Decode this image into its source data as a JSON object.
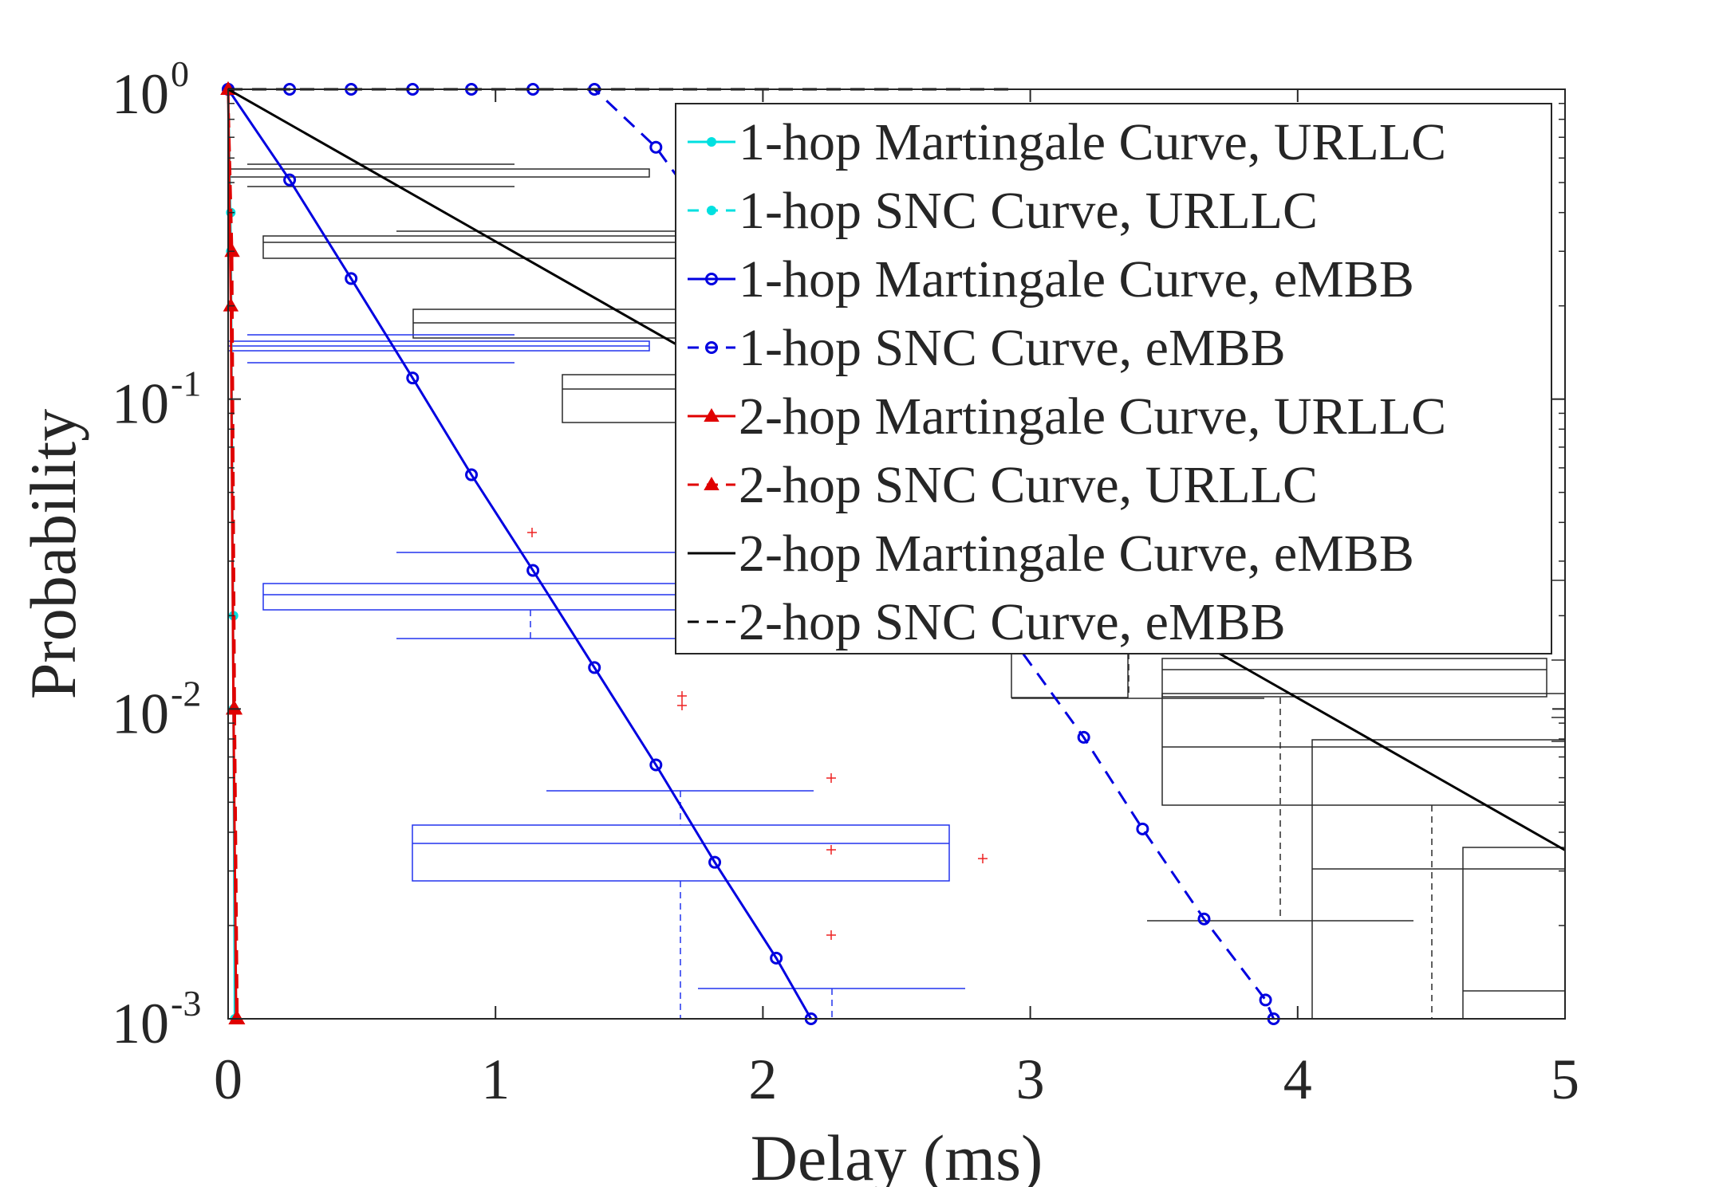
{
  "chart_data": {
    "type": "line",
    "xlabel": "Delay (ms)",
    "ylabel": "Probability",
    "xlim": [
      0,
      5
    ],
    "ylim": [
      0.001,
      1
    ],
    "yscale": "log",
    "grid": false,
    "legend_position": "top-right",
    "x_ticks": [
      {
        "value": 0,
        "label": "0"
      },
      {
        "value": 1,
        "label": "1"
      },
      {
        "value": 2,
        "label": "2"
      },
      {
        "value": 3,
        "label": "3"
      },
      {
        "value": 4,
        "label": "4"
      },
      {
        "value": 5,
        "label": "5"
      }
    ],
    "y_ticks": [
      {
        "value": 1,
        "base": "10",
        "exp": "0"
      },
      {
        "value": 0.1,
        "base": "10",
        "exp": "-1"
      },
      {
        "value": 0.01,
        "base": "10",
        "exp": "-2"
      },
      {
        "value": 0.001,
        "base": "10",
        "exp": "-3"
      }
    ],
    "series": [
      {
        "name": "1-hop Martingale Curve, URLLC",
        "color": "#00e0e0",
        "line": "solid",
        "marker": "dot",
        "x": [
          0,
          0.01,
          0.02,
          0.025
        ],
        "y": [
          1,
          0.3,
          0.01,
          0.001
        ]
      },
      {
        "name": "1-hop SNC Curve, URLLC",
        "color": "#00e0e0",
        "line": "dashed",
        "marker": "dot",
        "x": [
          0,
          0.01,
          0.02,
          0.03
        ],
        "y": [
          1,
          0.4,
          0.02,
          0.001
        ]
      },
      {
        "name": "1-hop Martingale Curve, eMBB",
        "color": "#0000e0",
        "line": "solid",
        "marker": "circle",
        "x": [
          0,
          0.23,
          0.46,
          0.69,
          0.91,
          1.14,
          1.37,
          1.6,
          1.82,
          2.05,
          2.18
        ],
        "y": [
          1,
          0.51,
          0.245,
          0.117,
          0.057,
          0.028,
          0.0136,
          0.0066,
          0.0032,
          0.00157,
          0.001
        ]
      },
      {
        "name": "1-hop SNC Curve, eMBB",
        "color": "#0000e0",
        "line": "dashed",
        "marker": "circle",
        "x": [
          0,
          0.23,
          0.46,
          0.69,
          0.91,
          1.14,
          1.37,
          1.6,
          3.2,
          3.42,
          3.65,
          3.88,
          3.91
        ],
        "y": [
          1,
          1,
          1,
          1,
          1,
          1,
          1,
          0.65,
          0.0081,
          0.0041,
          0.0021,
          0.00115,
          0.001
        ]
      },
      {
        "name": "2-hop Martingale Curve, URLLC",
        "color": "#e00000",
        "line": "solid",
        "marker": "triangle",
        "x": [
          0,
          0.01,
          0.02,
          0.03
        ],
        "y": [
          1,
          0.2,
          0.01,
          0.001
        ]
      },
      {
        "name": "2-hop SNC Curve, URLLC",
        "color": "#e00000",
        "line": "dashed",
        "marker": "triangle",
        "x": [
          0,
          0.015,
          0.025,
          0.035
        ],
        "y": [
          1,
          0.3,
          0.01,
          0.001
        ]
      },
      {
        "name": "2-hop Martingale Curve, eMBB",
        "color": "#000000",
        "line": "solid",
        "marker": "none",
        "x": [
          0,
          5
        ],
        "y": [
          1,
          0.0035
        ]
      },
      {
        "name": "2-hop SNC Curve, eMBB",
        "color": "#000000",
        "line": "dashed",
        "marker": "none",
        "x": [
          0,
          2.95
        ],
        "y": [
          1,
          1
        ]
      }
    ]
  }
}
